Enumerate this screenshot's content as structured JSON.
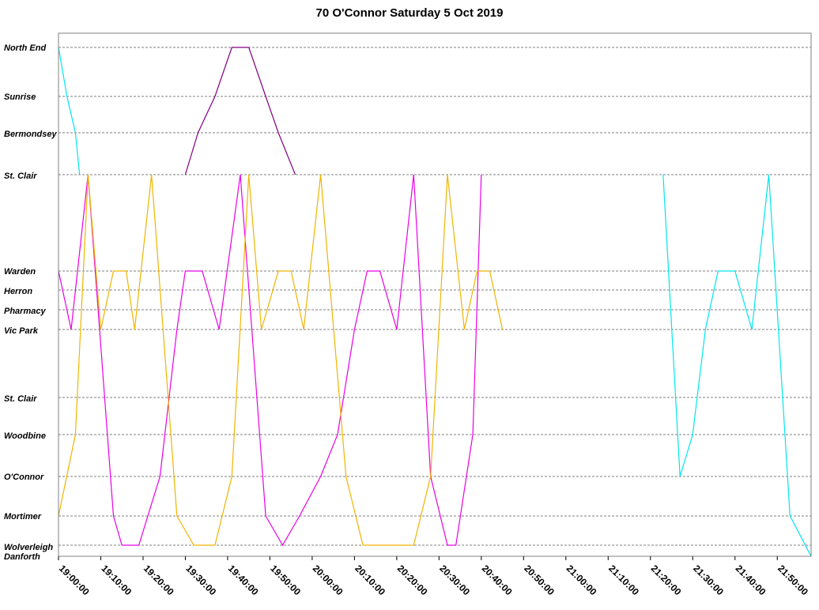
{
  "chart_data": {
    "type": "line",
    "title": "70 O'Connor  Saturday  5 Oct 2019",
    "xlabel": "",
    "ylabel": "",
    "x_range": [
      "19:00:00",
      "21:58:00"
    ],
    "x_tick_labels": [
      "19:00:00",
      "19:10:00",
      "19:20:00",
      "19:30:00",
      "19:40:00",
      "19:50:00",
      "20:00:00",
      "20:10:00",
      "20:20:00",
      "20:30:00",
      "20:40:00",
      "20:50:00",
      "21:00:00",
      "21:10:00",
      "21:20:00",
      "21:30:00",
      "21:40:00",
      "21:50:00"
    ],
    "y_stops": [
      "North End",
      "Sunrise",
      "Bermondsey",
      "St. Clair",
      "Warden",
      "Herron",
      "Pharmacy",
      "Vic Park",
      "St. Clair",
      "Woodbine",
      "O'Connor",
      "Mortimer",
      "Wolverleigh",
      "Danforth"
    ],
    "grid": true,
    "legend": "none",
    "colors": {
      "cyan": "#00e5ee",
      "purple": "#800080",
      "magenta": "#e800e8",
      "orange": "#f0b400",
      "blue": "#1f3fbf"
    },
    "series": [
      {
        "color": "magenta",
        "stops_over_time": [
          [
            "19:00",
            "Warden"
          ],
          [
            "19:03",
            "Vic Park"
          ],
          [
            "19:07",
            "St. Clair"
          ],
          [
            "19:13",
            "Mortimer"
          ],
          [
            "19:15",
            "Wolverleigh"
          ],
          [
            "19:19",
            "Wolverleigh"
          ],
          [
            "19:24",
            "O'Connor"
          ],
          [
            "19:28",
            "Vic Park"
          ],
          [
            "19:30",
            "Warden"
          ],
          [
            "19:34",
            "Warden"
          ],
          [
            "19:38",
            "Vic Park"
          ],
          [
            "19:43",
            "St. Clair"
          ],
          [
            "19:49",
            "Mortimer"
          ],
          [
            "19:53",
            "Wolverleigh"
          ],
          [
            "19:57",
            "Mortimer"
          ],
          [
            "20:02",
            "O'Connor"
          ],
          [
            "20:06",
            "Woodbine"
          ],
          [
            "20:10",
            "Vic Park"
          ],
          [
            "20:13",
            "Warden"
          ],
          [
            "20:16",
            "Warden"
          ],
          [
            "20:20",
            "Vic Park"
          ],
          [
            "20:24",
            "St. Clair"
          ],
          [
            "20:28",
            "O'Connor"
          ],
          [
            "20:32",
            "Wolverleigh"
          ],
          [
            "20:34",
            "Wolverleigh"
          ],
          [
            "20:38",
            "Woodbine"
          ],
          [
            "20:40",
            "St. Clair"
          ]
        ]
      },
      {
        "color": "orange",
        "stops_over_time": [
          [
            "19:00",
            "Mortimer"
          ],
          [
            "19:04",
            "Woodbine"
          ],
          [
            "19:07",
            "St. Clair"
          ],
          [
            "19:10",
            "Vic Park"
          ],
          [
            "19:13",
            "Warden"
          ],
          [
            "19:16",
            "Warden"
          ],
          [
            "19:18",
            "Vic Park"
          ],
          [
            "19:22",
            "St. Clair"
          ],
          [
            "19:28",
            "Mortimer"
          ],
          [
            "19:32",
            "Wolverleigh"
          ],
          [
            "19:37",
            "Wolverleigh"
          ],
          [
            "19:41",
            "O'Connor"
          ],
          [
            "19:45",
            "St. Clair"
          ],
          [
            "19:48",
            "Vic Park"
          ],
          [
            "19:52",
            "Warden"
          ],
          [
            "19:55",
            "Warden"
          ],
          [
            "19:58",
            "Vic Park"
          ],
          [
            "20:02",
            "St. Clair"
          ],
          [
            "20:08",
            "O'Connor"
          ],
          [
            "20:12",
            "Wolverleigh"
          ],
          [
            "20:24",
            "Wolverleigh"
          ],
          [
            "20:28",
            "O'Connor"
          ],
          [
            "20:32",
            "St. Clair"
          ],
          [
            "20:36",
            "Vic Park"
          ],
          [
            "20:39",
            "Warden"
          ],
          [
            "20:42",
            "Warden"
          ],
          [
            "20:45",
            "Vic Park"
          ]
        ]
      },
      {
        "color": "cyan",
        "stops_over_time": [
          [
            "19:00",
            "North End"
          ],
          [
            "19:02",
            "Sunrise"
          ],
          [
            "19:04",
            "Bermondsey"
          ],
          [
            "19:05",
            "St. Clair"
          ]
        ]
      },
      {
        "color": "purple",
        "stops_over_time": [
          [
            "19:30",
            "St. Clair"
          ],
          [
            "19:33",
            "Bermondsey"
          ],
          [
            "19:37",
            "Sunrise"
          ],
          [
            "19:41",
            "North End"
          ],
          [
            "19:45",
            "North End"
          ],
          [
            "19:49",
            "Sunrise"
          ],
          [
            "19:52",
            "Bermondsey"
          ],
          [
            "19:56",
            "St. Clair"
          ]
        ]
      },
      {
        "color": "cyan",
        "stops_over_time": [
          [
            "21:23",
            "St. Clair"
          ],
          [
            "21:27",
            "O'Connor"
          ],
          [
            "21:30",
            "Woodbine"
          ],
          [
            "21:33",
            "Vic Park"
          ],
          [
            "21:36",
            "Warden"
          ],
          [
            "21:40",
            "Warden"
          ],
          [
            "21:44",
            "Vic Park"
          ],
          [
            "21:48",
            "St. Clair"
          ],
          [
            "21:53",
            "Mortimer"
          ],
          [
            "21:58",
            "Danforth"
          ]
        ]
      }
    ]
  }
}
